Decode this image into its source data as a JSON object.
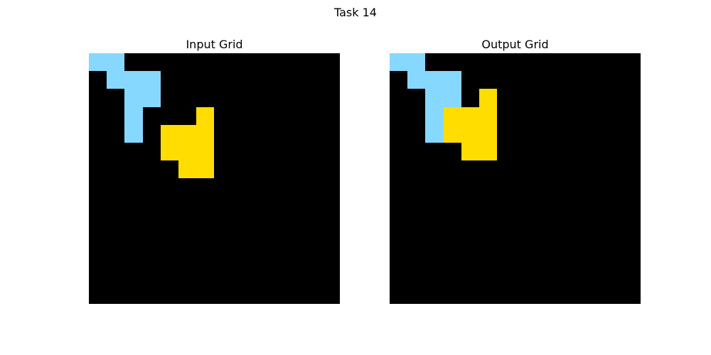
{
  "figure": {
    "title": "Task 14"
  },
  "palette": {
    "0": "#000000",
    "8": "#87D8FF",
    "4": "#FFDD00"
  },
  "panels": [
    {
      "title": "Input Grid",
      "grid": [
        [
          8,
          8,
          0,
          0,
          0,
          0,
          0,
          0,
          0,
          0,
          0,
          0,
          0,
          0
        ],
        [
          0,
          8,
          8,
          8,
          0,
          0,
          0,
          0,
          0,
          0,
          0,
          0,
          0,
          0
        ],
        [
          0,
          0,
          8,
          8,
          0,
          0,
          0,
          0,
          0,
          0,
          0,
          0,
          0,
          0
        ],
        [
          0,
          0,
          8,
          0,
          0,
          0,
          4,
          0,
          0,
          0,
          0,
          0,
          0,
          0
        ],
        [
          0,
          0,
          8,
          0,
          4,
          4,
          4,
          0,
          0,
          0,
          0,
          0,
          0,
          0
        ],
        [
          0,
          0,
          0,
          0,
          4,
          4,
          4,
          0,
          0,
          0,
          0,
          0,
          0,
          0
        ],
        [
          0,
          0,
          0,
          0,
          0,
          4,
          4,
          0,
          0,
          0,
          0,
          0,
          0,
          0
        ],
        [
          0,
          0,
          0,
          0,
          0,
          0,
          0,
          0,
          0,
          0,
          0,
          0,
          0,
          0
        ],
        [
          0,
          0,
          0,
          0,
          0,
          0,
          0,
          0,
          0,
          0,
          0,
          0,
          0,
          0
        ],
        [
          0,
          0,
          0,
          0,
          0,
          0,
          0,
          0,
          0,
          0,
          0,
          0,
          0,
          0
        ],
        [
          0,
          0,
          0,
          0,
          0,
          0,
          0,
          0,
          0,
          0,
          0,
          0,
          0,
          0
        ],
        [
          0,
          0,
          0,
          0,
          0,
          0,
          0,
          0,
          0,
          0,
          0,
          0,
          0,
          0
        ],
        [
          0,
          0,
          0,
          0,
          0,
          0,
          0,
          0,
          0,
          0,
          0,
          0,
          0,
          0
        ],
        [
          0,
          0,
          0,
          0,
          0,
          0,
          0,
          0,
          0,
          0,
          0,
          0,
          0,
          0
        ]
      ]
    },
    {
      "title": "Output Grid",
      "grid": [
        [
          8,
          8,
          0,
          0,
          0,
          0,
          0,
          0,
          0,
          0,
          0,
          0,
          0,
          0
        ],
        [
          0,
          8,
          8,
          8,
          0,
          0,
          0,
          0,
          0,
          0,
          0,
          0,
          0,
          0
        ],
        [
          0,
          0,
          8,
          8,
          0,
          4,
          0,
          0,
          0,
          0,
          0,
          0,
          0,
          0
        ],
        [
          0,
          0,
          8,
          4,
          4,
          4,
          0,
          0,
          0,
          0,
          0,
          0,
          0,
          0
        ],
        [
          0,
          0,
          8,
          4,
          4,
          4,
          0,
          0,
          0,
          0,
          0,
          0,
          0,
          0
        ],
        [
          0,
          0,
          0,
          0,
          4,
          4,
          0,
          0,
          0,
          0,
          0,
          0,
          0,
          0
        ],
        [
          0,
          0,
          0,
          0,
          0,
          0,
          0,
          0,
          0,
          0,
          0,
          0,
          0,
          0
        ],
        [
          0,
          0,
          0,
          0,
          0,
          0,
          0,
          0,
          0,
          0,
          0,
          0,
          0,
          0
        ],
        [
          0,
          0,
          0,
          0,
          0,
          0,
          0,
          0,
          0,
          0,
          0,
          0,
          0,
          0
        ],
        [
          0,
          0,
          0,
          0,
          0,
          0,
          0,
          0,
          0,
          0,
          0,
          0,
          0,
          0
        ],
        [
          0,
          0,
          0,
          0,
          0,
          0,
          0,
          0,
          0,
          0,
          0,
          0,
          0,
          0
        ],
        [
          0,
          0,
          0,
          0,
          0,
          0,
          0,
          0,
          0,
          0,
          0,
          0,
          0,
          0
        ],
        [
          0,
          0,
          0,
          0,
          0,
          0,
          0,
          0,
          0,
          0,
          0,
          0,
          0,
          0
        ],
        [
          0,
          0,
          0,
          0,
          0,
          0,
          0,
          0,
          0,
          0,
          0,
          0,
          0,
          0
        ]
      ]
    }
  ]
}
